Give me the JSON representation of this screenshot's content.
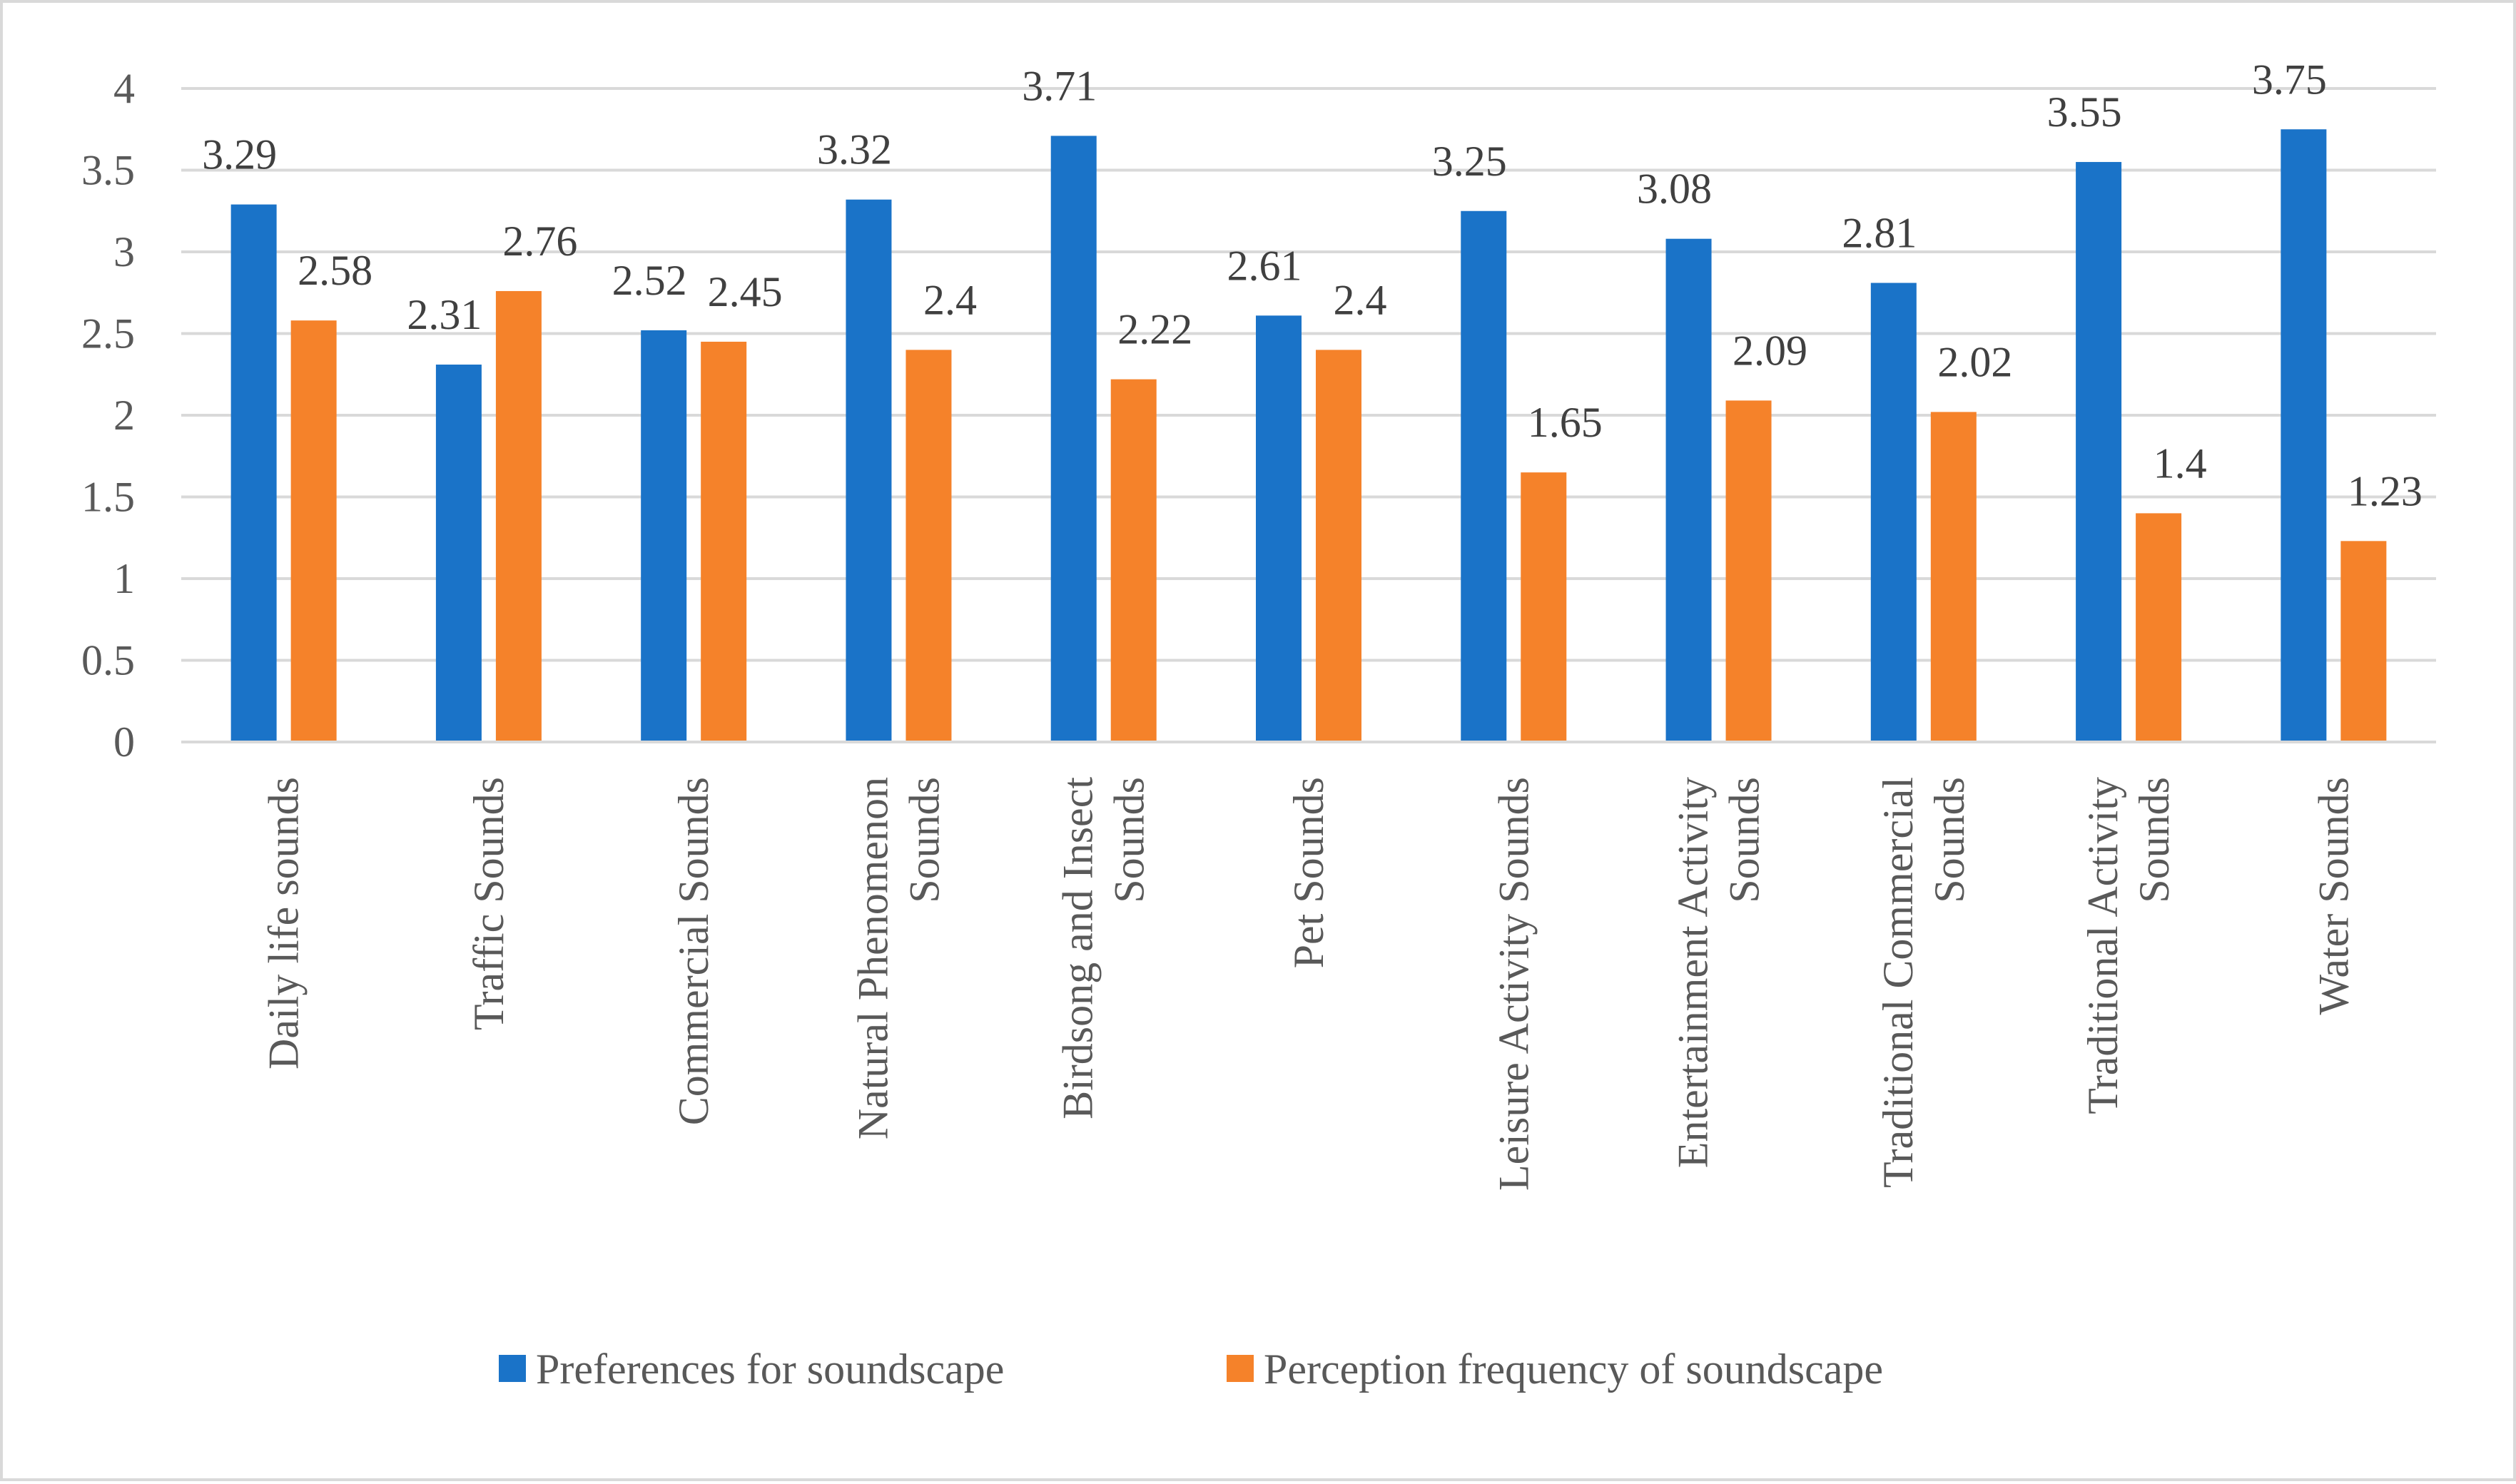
{
  "chart_data": {
    "type": "bar",
    "title": "",
    "xlabel": "",
    "ylabel": "",
    "ylim": [
      0,
      4
    ],
    "yticks": [
      "0",
      "0.5",
      "1",
      "1.5",
      "2",
      "2.5",
      "3",
      "3.5",
      "4"
    ],
    "grid": true,
    "legend_position": "bottom",
    "categories": [
      [
        "Daily life sounds"
      ],
      [
        "Traffic Sounds"
      ],
      [
        "Commercial Sounds"
      ],
      [
        "Natural Phenomenon",
        "Sounds"
      ],
      [
        "Birdsong and Insect",
        "Sounds"
      ],
      [
        "Pet Sounds"
      ],
      [
        "Leisure Activity Sounds"
      ],
      [
        "Entertainment Activity",
        "Sounds"
      ],
      [
        "Traditional Commercial",
        "Sounds"
      ],
      [
        "Traditional Activity",
        "Sounds"
      ],
      [
        "Water Sounds"
      ]
    ],
    "series": [
      {
        "name": "Preferences for soundscape",
        "color": "#1a73c8",
        "values": [
          3.29,
          2.31,
          2.52,
          3.32,
          3.71,
          2.61,
          3.25,
          3.08,
          2.81,
          3.55,
          3.75
        ],
        "labels": [
          "3.29",
          "2.31",
          "2.52",
          "3.32",
          "3.71",
          "2.61",
          "3.25",
          "3.08",
          "2.81",
          "3.55",
          "3.75"
        ]
      },
      {
        "name": "Perception frequency of soundscape",
        "color": "#f5822a",
        "values": [
          2.58,
          2.76,
          2.45,
          2.4,
          2.22,
          2.4,
          1.65,
          2.09,
          2.02,
          1.4,
          1.23
        ],
        "labels": [
          "2.58",
          "2.76",
          "2.45",
          "2.4",
          "2.22",
          "2.4",
          "1.65",
          "2.09",
          "2.02",
          "1.4",
          "1.23"
        ]
      }
    ]
  }
}
